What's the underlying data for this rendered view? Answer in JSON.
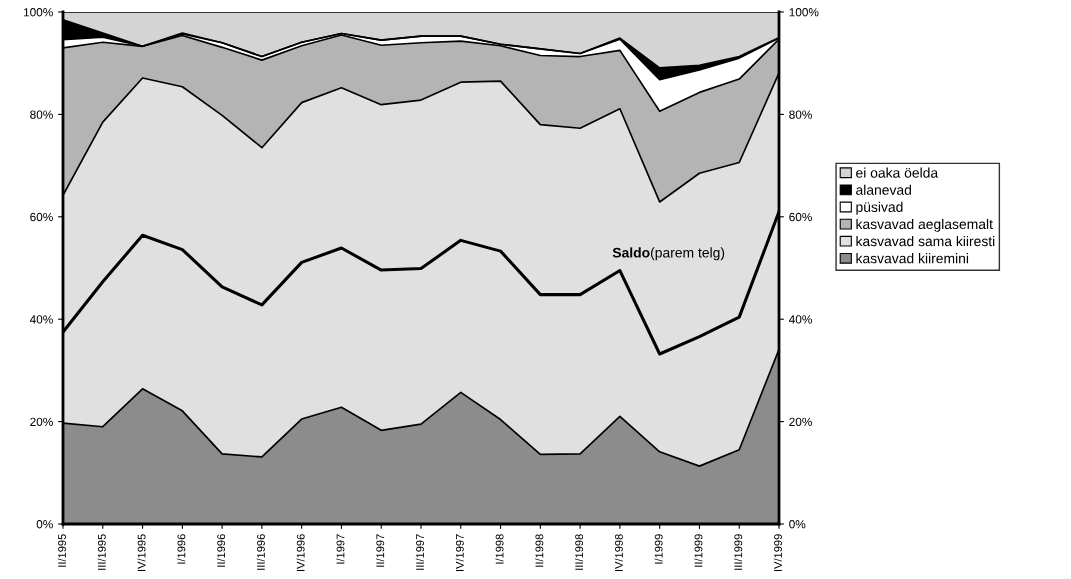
{
  "chart_data": {
    "type": "area",
    "stacked": true,
    "categories": [
      "II/1995",
      "III/1995",
      "IV/1995",
      "I/1996",
      "II/1996",
      "III/1996",
      "IV/1996",
      "I/1997",
      "II/1997",
      "III/1997",
      "IV/1997",
      "I/1998",
      "II/1998",
      "III/1998",
      "IV/1998",
      "I/1999",
      "II/1999",
      "III/1999",
      "IV/1999"
    ],
    "series": [
      {
        "name": "kasvavad kiiremini",
        "color": "#8c8c8c",
        "values": [
          19.7,
          19.0,
          26.4,
          22.1,
          13.7,
          13.1,
          20.5,
          22.8,
          18.3,
          19.5,
          25.7,
          20.4,
          13.6,
          13.7,
          21.0,
          14.1,
          11.3,
          14.5,
          34.1
        ]
      },
      {
        "name": "kasvavad sama kiiresti",
        "color": "#e0e0e0",
        "values": [
          44.5,
          59.5,
          60.7,
          63.3,
          66.1,
          60.4,
          61.8,
          62.4,
          63.6,
          63.3,
          60.6,
          66.1,
          64.4,
          63.6,
          60.1,
          48.8,
          57.2,
          56.1,
          54.0
        ]
      },
      {
        "name": "kasvavad aeglasemalt",
        "color": "#b4b4b4",
        "values": [
          28.8,
          15.6,
          6.2,
          10.0,
          13.3,
          17.1,
          11.1,
          10.3,
          11.6,
          11.2,
          8.0,
          6.9,
          13.5,
          14.0,
          11.4,
          17.7,
          15.8,
          16.3,
          6.6
        ]
      },
      {
        "name": "püsivad",
        "color": "#ffffff",
        "values": [
          1.6,
          1.0,
          0,
          0.3,
          0.9,
          0.7,
          0.7,
          0.3,
          1.0,
          1.3,
          1.0,
          0.3,
          1.3,
          0.6,
          2.2,
          6.2,
          4.4,
          4.1,
          0.2
        ]
      },
      {
        "name": "alanevad",
        "color": "#000000",
        "values": [
          3.9,
          0.8,
          0,
          0.2,
          0,
          0,
          0,
          0,
          0,
          0,
          0,
          0,
          0,
          0,
          0.2,
          2.3,
          0.9,
          0.3,
          0.1
        ]
      },
      {
        "name": "ei oaka öelda",
        "color": "#d4d4d4",
        "values": [
          1.5,
          4.1,
          6.7,
          4.1,
          6.0,
          8.7,
          5.9,
          4.2,
          5.5,
          4.7,
          4.7,
          6.3,
          7.2,
          8.1,
          5.1,
          10.9,
          10.4,
          8.7,
          5.0
        ]
      },
      {
        "name": "Saldo",
        "type": "line",
        "axis": "y2",
        "color": "#000000",
        "values": [
          37.5,
          47.3,
          56.4,
          53.6,
          46.3,
          42.8,
          51.1,
          53.9,
          49.6,
          49.9,
          55.4,
          53.3,
          44.8,
          44.8,
          49.5,
          33.2,
          36.6,
          40.4,
          61.0
        ]
      }
    ],
    "ylim": [
      0,
      100
    ],
    "yticks": [
      {
        "value": 0,
        "label": "0%"
      },
      {
        "value": 20,
        "label": "20%"
      },
      {
        "value": 40,
        "label": "40%"
      },
      {
        "value": 60,
        "label": "60%"
      },
      {
        "value": 80,
        "label": "80%"
      },
      {
        "value": 100,
        "label": "100%"
      }
    ],
    "y2lim": [
      0,
      100
    ],
    "y2ticks": [
      {
        "value": 0,
        "label": "0%"
      },
      {
        "value": 20,
        "label": "20%"
      },
      {
        "value": 40,
        "label": "40%"
      },
      {
        "value": 60,
        "label": "60%"
      },
      {
        "value": 80,
        "label": "80%"
      },
      {
        "value": 100,
        "label": "100%"
      }
    ],
    "annotations": [
      "(parem telg)"
    ],
    "grid": false,
    "legend": "right"
  }
}
